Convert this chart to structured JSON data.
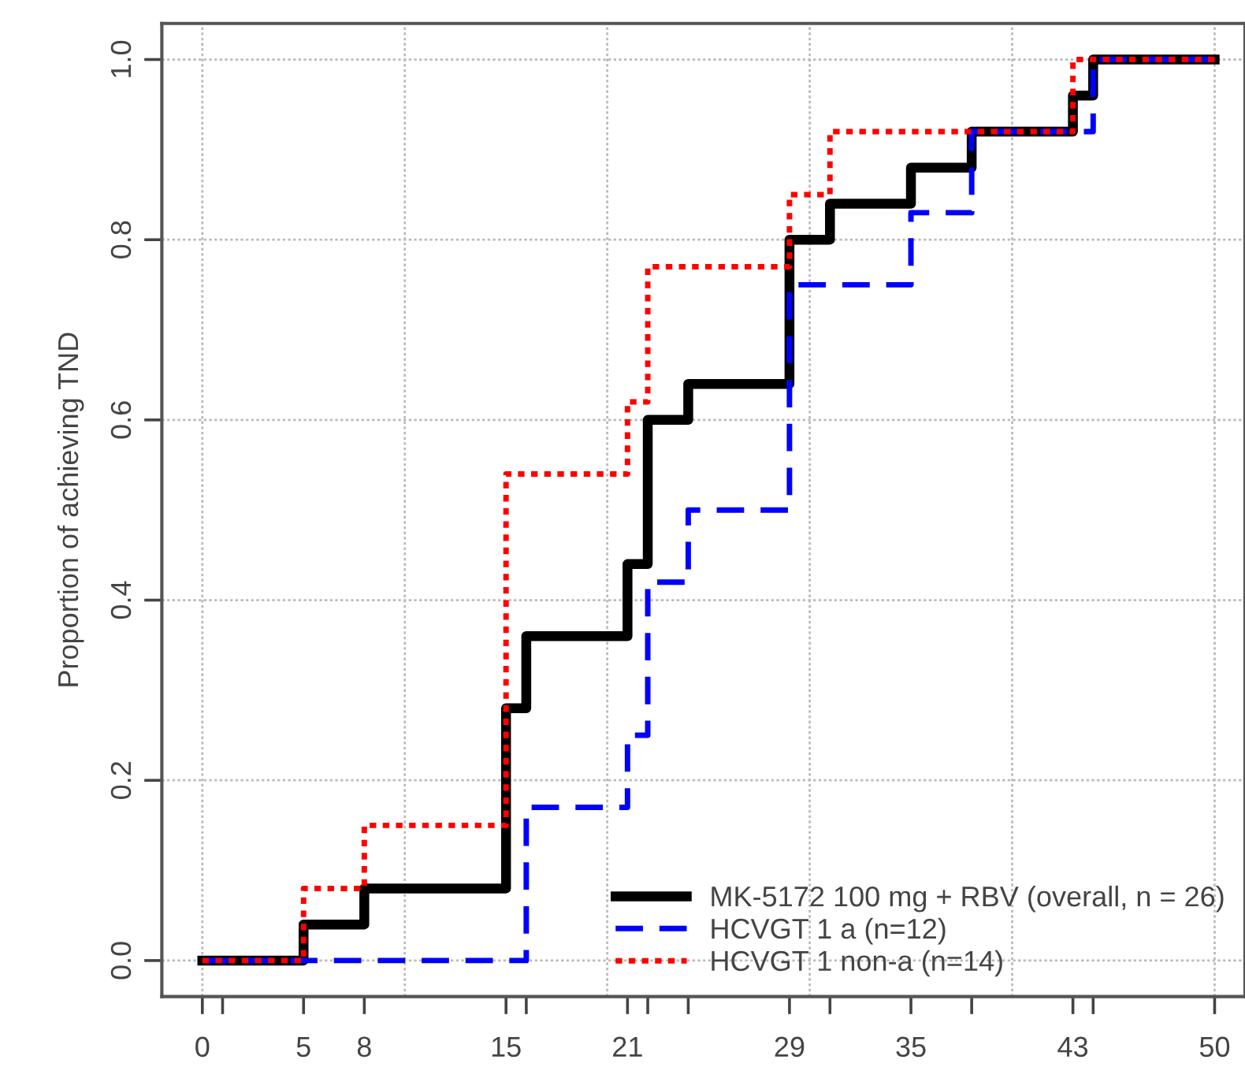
{
  "chart_data": {
    "type": "step",
    "ylabel": "Proportion of achieving TND",
    "series": [
      {
        "name": "MK-5172 100 mg + RBV (overall, n = 26)",
        "color": "#000000",
        "line_style": "solid",
        "x": [
          0,
          5,
          8,
          15,
          16,
          21,
          22,
          24,
          29,
          31,
          35,
          38,
          43,
          44,
          50
        ],
        "values": [
          0,
          0.04,
          0.08,
          0.28,
          0.36,
          0.44,
          0.6,
          0.64,
          0.8,
          0.84,
          0.88,
          0.92,
          0.96,
          1.0,
          1.0
        ]
      },
      {
        "name": "HCVGT 1 a (n=12)",
        "color": "#0000ff",
        "line_style": "dashed",
        "x": [
          0,
          16,
          21,
          22,
          24,
          29,
          35,
          38,
          44,
          50
        ],
        "values": [
          0,
          0.17,
          0.25,
          0.42,
          0.5,
          0.75,
          0.83,
          0.92,
          1.0,
          1.0
        ]
      },
      {
        "name": "HCVGT 1 non-a (n=14)",
        "color": "#ff0000",
        "line_style": "dotted",
        "x": [
          0,
          5,
          8,
          15,
          21,
          22,
          29,
          31,
          43,
          50
        ],
        "values": [
          0,
          0.08,
          0.15,
          0.54,
          0.62,
          0.77,
          0.85,
          0.92,
          1.0,
          1.0
        ]
      }
    ],
    "xlim": [
      -2,
      51.5
    ],
    "ylim": [
      -0.04,
      1.04
    ],
    "xticks": [
      0,
      {
        "value": 1,
        "label": null
      },
      5,
      8,
      15,
      {
        "value": 16,
        "label": null
      },
      21,
      {
        "value": 22,
        "label": null
      },
      {
        "value": 24,
        "label": null
      },
      29,
      {
        "value": 31,
        "label": null
      },
      35,
      {
        "value": 38,
        "label": null
      },
      43,
      {
        "value": 44,
        "label": null
      },
      50
    ],
    "yticks": [
      {
        "value": 0,
        "label": "0.0"
      },
      0.2,
      0.4,
      0.6,
      0.8,
      {
        "value": 1,
        "label": "1.0"
      }
    ],
    "ref_lines": [
      {
        "axis": "x",
        "value": 0,
        "color": "#bbbbbb",
        "line_style": "dotted"
      },
      {
        "axis": "x",
        "value": 10,
        "color": "#bbbbbb",
        "line_style": "dotted"
      },
      {
        "axis": "x",
        "value": 20,
        "color": "#bbbbbb",
        "line_style": "dotted"
      },
      {
        "axis": "x",
        "value": 30,
        "color": "#bbbbbb",
        "line_style": "dotted"
      },
      {
        "axis": "x",
        "value": 40,
        "color": "#bbbbbb",
        "line_style": "dotted"
      },
      {
        "axis": "x",
        "value": 50,
        "color": "#bbbbbb",
        "line_style": "dotted"
      }
    ],
    "grid": "y",
    "legend": "bottom right"
  }
}
